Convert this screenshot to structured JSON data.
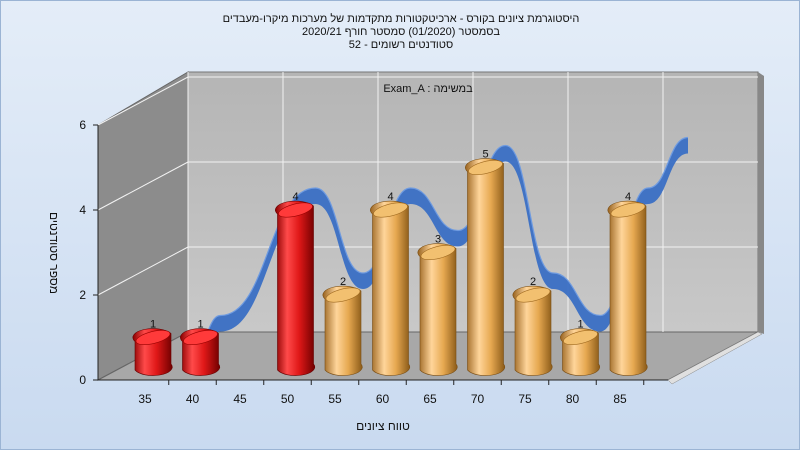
{
  "title_lines": [
    "היסטוגרמת ציונים בקורס - ארכיטקטורות מתקדמות של מערכות מיקרו-מעבדים",
    "בסמסטר  (01/2020)  סמסטר חורף  2020/21",
    "סטודנטים רשומים - 52"
  ],
  "chart_data": {
    "type": "bar",
    "annotation": "Exam_A : במשימה",
    "xlabel": "טווח ציונים",
    "ylabel": "מספר סטודנטים",
    "ylim": [
      0,
      6
    ],
    "y_ticks": [
      "0",
      "2",
      "4",
      "6"
    ],
    "x_ticks": [
      "35",
      "40",
      "45",
      "50",
      "55",
      "60",
      "65",
      "70",
      "75",
      "80",
      "85"
    ],
    "categories": [
      "35",
      "40",
      "50",
      "55",
      "60",
      "65",
      "70",
      "75",
      "80",
      "85"
    ],
    "values": [
      1,
      1,
      4,
      2,
      4,
      3,
      5,
      2,
      1,
      4
    ],
    "labels": [
      "1",
      "1",
      "4",
      "2",
      "4",
      "3",
      "5",
      "2",
      "1",
      "4"
    ],
    "bar_colors": [
      "#e01818",
      "#e01818",
      "#e01818",
      "#e0a040",
      "#e0a040",
      "#e0a040",
      "#e0a040",
      "#e0a040",
      "#e0a040",
      "#e0a040"
    ],
    "trend_color": "#3a6fc4",
    "grid": true
  }
}
